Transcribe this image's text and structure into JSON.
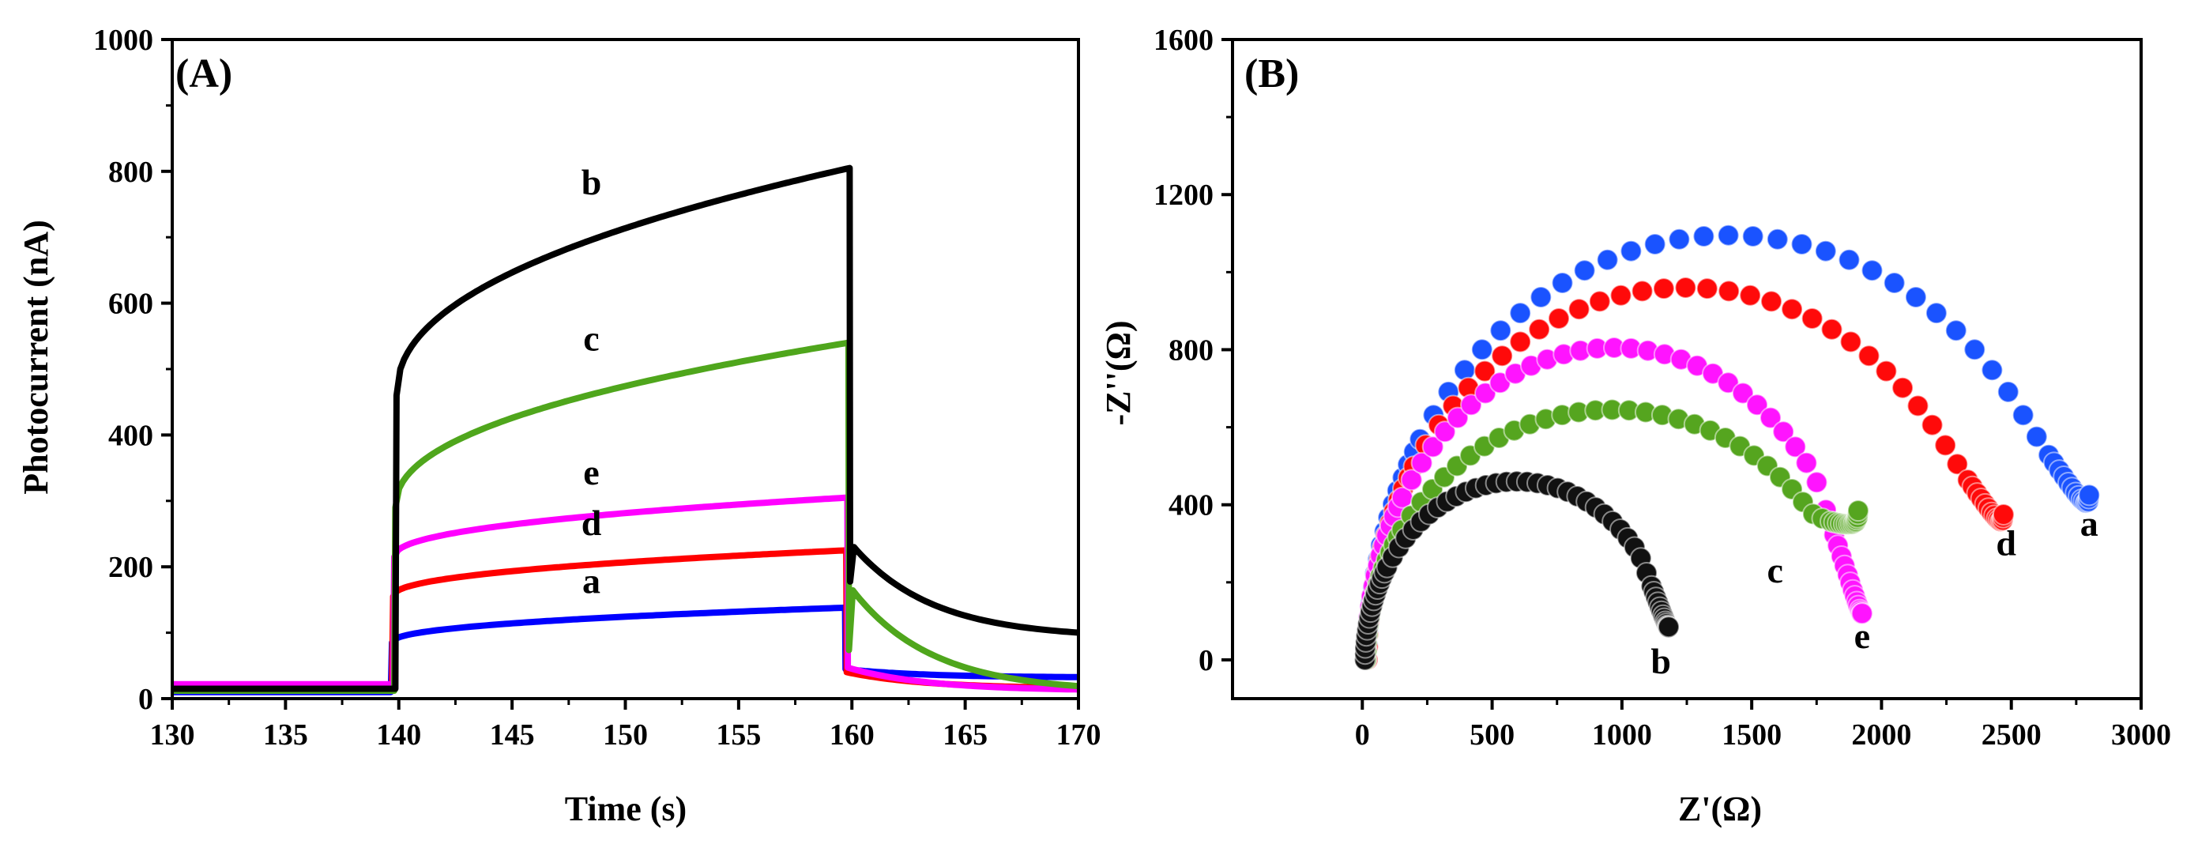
{
  "chart_data": [
    {
      "type": "line",
      "panel_label": "(A)",
      "xlabel": "Time (s)",
      "ylabel": "Photocurrent (nA)",
      "xlim": [
        130,
        170
      ],
      "ylim": [
        0,
        1000
      ],
      "xticks": [
        "130",
        "135",
        "140",
        "145",
        "150",
        "155",
        "160",
        "165",
        "170"
      ],
      "yticks": [
        "0",
        "200",
        "400",
        "600",
        "800",
        "1000"
      ],
      "light_on": 140,
      "light_off": 160,
      "series": [
        {
          "name": "a",
          "color": "#0000ff",
          "baseline": 10,
          "jump": 85,
          "plateau_end": 138,
          "tail": 32
        },
        {
          "name": "d",
          "color": "#ff0000",
          "baseline": 12,
          "jump": 155,
          "plateau_end": 225,
          "tail": 15
        },
        {
          "name": "e",
          "color": "#ff00ff",
          "baseline": 22,
          "jump": 215,
          "plateau_end": 305,
          "tail": 12
        },
        {
          "name": "c",
          "color": "#4fa61c",
          "baseline": 12,
          "jump": 290,
          "plateau_end": 540,
          "tail": 10
        },
        {
          "name": "b",
          "color": "#000000",
          "baseline": 15,
          "jump": 460,
          "plateau_end": 805,
          "tail": 92
        }
      ],
      "labels": [
        {
          "text": "b",
          "x": 148.5,
          "y": 765
        },
        {
          "text": "c",
          "x": 148.5,
          "y": 528
        },
        {
          "text": "e",
          "x": 148.5,
          "y": 325
        },
        {
          "text": "d",
          "x": 148.5,
          "y": 248
        },
        {
          "text": "a",
          "x": 148.5,
          "y": 160
        }
      ]
    },
    {
      "type": "scatter",
      "panel_label": "(B)",
      "xlabel": "Z'(Ω)",
      "ylabel": "-Z''(Ω)",
      "xlim": [
        -500,
        3000
      ],
      "ylim": [
        -100,
        1600
      ],
      "xticks": [
        "0",
        "500",
        "1000",
        "1500",
        "2000",
        "2500",
        "3000"
      ],
      "yticks": [
        "0",
        "400",
        "800",
        "1200",
        "1600"
      ],
      "series": [
        {
          "name": "a",
          "color": "#1a53ff",
          "rs": 20,
          "x_end": 2800,
          "peak": 1095,
          "end_y": 425
        },
        {
          "name": "d",
          "color": "#ff0a0a",
          "rs": 20,
          "x_end": 2470,
          "peak": 960,
          "end_y": 375
        },
        {
          "name": "e",
          "color": "#ff14ff",
          "rs": 15,
          "x_end": 1925,
          "peak": 805,
          "end_y": 120
        },
        {
          "name": "c",
          "color": "#55a51f",
          "rs": 15,
          "x_end": 1910,
          "peak": 645,
          "end_y": 385
        },
        {
          "name": "b",
          "color": "#111111",
          "rs": 10,
          "x_end": 1180,
          "peak": 460,
          "end_y": 85
        }
      ],
      "labels": [
        {
          "text": "b",
          "x": 1150,
          "y": -35
        },
        {
          "text": "c",
          "x": 1590,
          "y": 200
        },
        {
          "text": "e",
          "x": 1925,
          "y": 30
        },
        {
          "text": "d",
          "x": 2480,
          "y": 270
        },
        {
          "text": "a",
          "x": 2800,
          "y": 320
        }
      ]
    }
  ]
}
